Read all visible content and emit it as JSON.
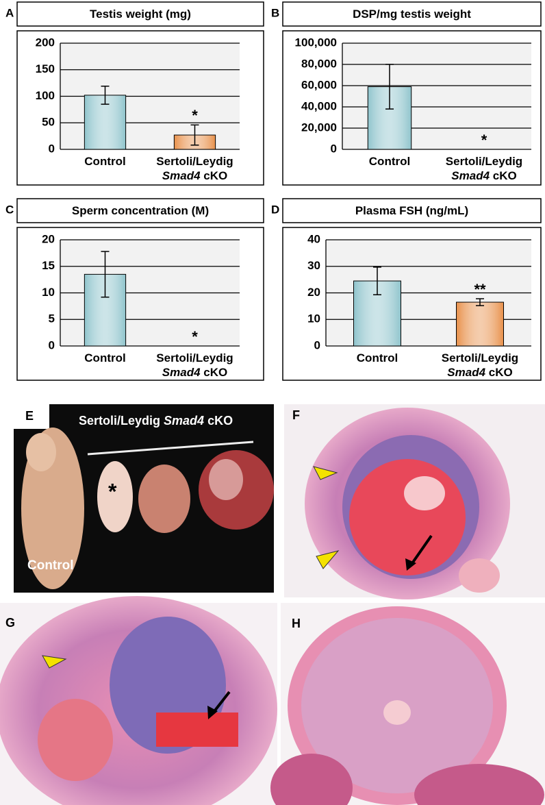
{
  "chart_data": [
    {
      "type": "bar",
      "panel": "A",
      "title": "Testis weight (mg)",
      "categories": [
        "Control",
        "Sertoli/Leydig\nSmad4 cKO"
      ],
      "values": [
        102,
        27
      ],
      "errors": [
        17,
        19
      ],
      "colors": [
        "#8fc4cc",
        "#e8904a"
      ],
      "significance": [
        null,
        "*"
      ],
      "ylim": [
        0,
        200
      ],
      "yticks": [
        0,
        50,
        100,
        150,
        200
      ],
      "grid": true
    },
    {
      "type": "bar",
      "panel": "B",
      "title": "DSP/mg testis weight",
      "categories": [
        "Control",
        "Sertoli/Leydig\nSmad4 cKO"
      ],
      "values": [
        59000,
        0
      ],
      "errors": [
        21000,
        null
      ],
      "colors": [
        "#8fc4cc",
        "#e8904a"
      ],
      "significance": [
        null,
        "*"
      ],
      "ylim": [
        0,
        100000
      ],
      "yticks": [
        0,
        {
          "value": 20000,
          "label": "20,000"
        },
        {
          "value": 40000,
          "label": "40,000"
        },
        {
          "value": 60000,
          "label": "60,000"
        },
        {
          "value": 80000,
          "label": "80,000"
        },
        {
          "value": 100000,
          "label": "100,000"
        }
      ],
      "grid": true
    },
    {
      "type": "bar",
      "panel": "C",
      "title": "Sperm concentration (M)",
      "categories": [
        "Control",
        "Sertoli/Leydig\nSmad4 cKO"
      ],
      "values": [
        13.5,
        0
      ],
      "errors": [
        4.3,
        null
      ],
      "colors": [
        "#8fc4cc",
        "#e8904a"
      ],
      "significance": [
        null,
        "*"
      ],
      "ylim": [
        0,
        20
      ],
      "yticks": [
        0,
        5,
        10,
        15,
        20
      ],
      "grid": true
    },
    {
      "type": "bar",
      "panel": "D",
      "title": "Plasma FSH (ng/mL)",
      "categories": [
        "Control",
        "Sertoli/Leydig\nSmad4 cKO"
      ],
      "values": [
        24.5,
        16.5
      ],
      "errors": [
        5.2,
        1.3
      ],
      "colors": [
        "#8fc4cc",
        "#e8904a"
      ],
      "significance": [
        null,
        "**"
      ],
      "ylim": [
        0,
        40
      ],
      "yticks": [
        0,
        10,
        20,
        30,
        40
      ],
      "grid": true
    }
  ],
  "panels": [
    {
      "label": "E",
      "caption": [
        "Sertoli/Leydig ",
        "Smad4",
        " cKO"
      ],
      "marker": "*",
      "control": "Control"
    },
    {
      "label": "F"
    },
    {
      "label": "G"
    },
    {
      "label": "H"
    }
  ]
}
